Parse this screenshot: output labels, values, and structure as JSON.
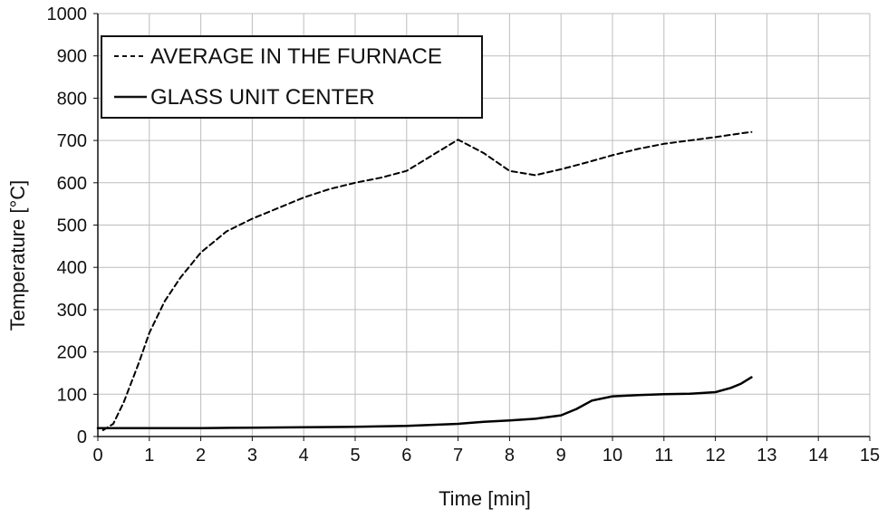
{
  "chart_data": {
    "type": "line",
    "title": "",
    "xlabel": "Time [min]",
    "ylabel": "Temperature [°C]",
    "xlim": [
      0,
      15
    ],
    "ylim": [
      0,
      1000
    ],
    "x_ticks": [
      "0",
      "1",
      "2",
      "3",
      "4",
      "5",
      "6",
      "7",
      "8",
      "9",
      "10",
      "11",
      "12",
      "13",
      "14",
      "15"
    ],
    "y_ticks": [
      "0",
      "100",
      "200",
      "300",
      "400",
      "500",
      "600",
      "700",
      "800",
      "900",
      "1000"
    ],
    "grid": true,
    "legend_position": "top-left",
    "series": [
      {
        "name": "AVERAGE IN THE FURNACE",
        "style": "dashed",
        "color": "#000000",
        "x": [
          0.1,
          0.3,
          0.5,
          0.8,
          1.0,
          1.3,
          1.6,
          2.0,
          2.5,
          3.0,
          3.5,
          4.0,
          4.5,
          5.0,
          5.5,
          6.0,
          6.5,
          7.0,
          7.5,
          8.0,
          8.5,
          9.0,
          9.5,
          10.0,
          10.5,
          11.0,
          11.5,
          12.0,
          12.5,
          12.7
        ],
        "y": [
          15,
          30,
          80,
          175,
          245,
          320,
          375,
          435,
          485,
          515,
          540,
          565,
          585,
          600,
          612,
          628,
          665,
          702,
          670,
          628,
          618,
          632,
          648,
          665,
          680,
          692,
          700,
          708,
          717,
          720
        ]
      },
      {
        "name": "GLASS UNIT CENTER",
        "style": "solid",
        "color": "#000000",
        "x": [
          0.0,
          1.0,
          2.0,
          3.0,
          4.0,
          5.0,
          6.0,
          7.0,
          7.5,
          8.0,
          8.5,
          9.0,
          9.3,
          9.6,
          10.0,
          10.5,
          11.0,
          11.5,
          12.0,
          12.3,
          12.5,
          12.7
        ],
        "y": [
          20,
          20,
          20,
          21,
          22,
          23,
          25,
          30,
          35,
          38,
          42,
          50,
          65,
          85,
          95,
          98,
          100,
          101,
          105,
          115,
          125,
          140
        ]
      }
    ]
  }
}
